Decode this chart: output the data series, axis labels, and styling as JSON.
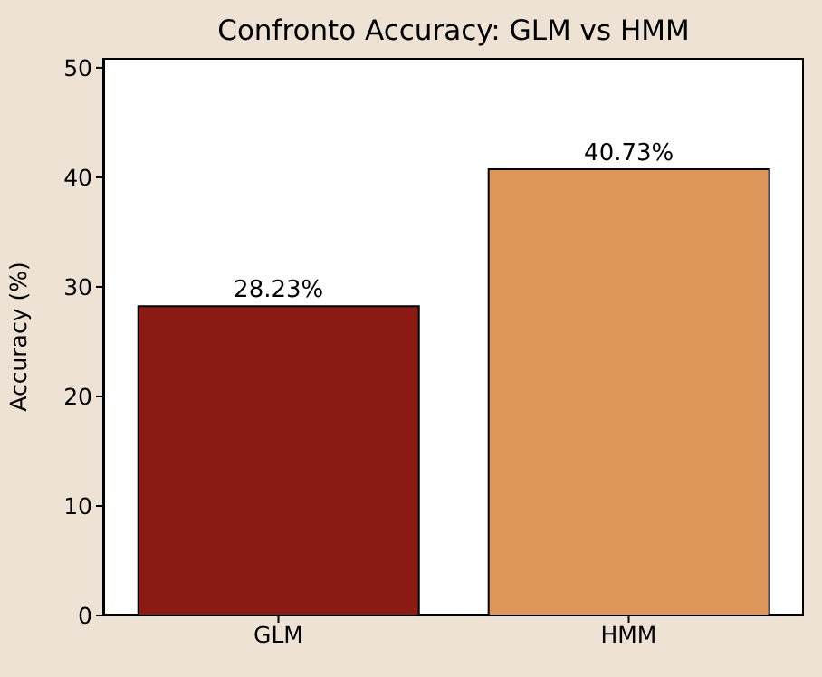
{
  "chart_data": {
    "type": "bar",
    "title": "Confronto Accuracy: GLM vs HMM",
    "ylabel": "Accuracy (%)",
    "categories": [
      "GLM",
      "HMM"
    ],
    "values": [
      28.23,
      40.73
    ],
    "colors": [
      "#8b1a15",
      "#de965a"
    ],
    "value_labels": [
      "28.23%",
      "40.73%"
    ],
    "ylim": [
      0,
      50.9
    ],
    "yticks": [
      0,
      10,
      20,
      30,
      40,
      50
    ],
    "grid": false,
    "legend": false
  }
}
